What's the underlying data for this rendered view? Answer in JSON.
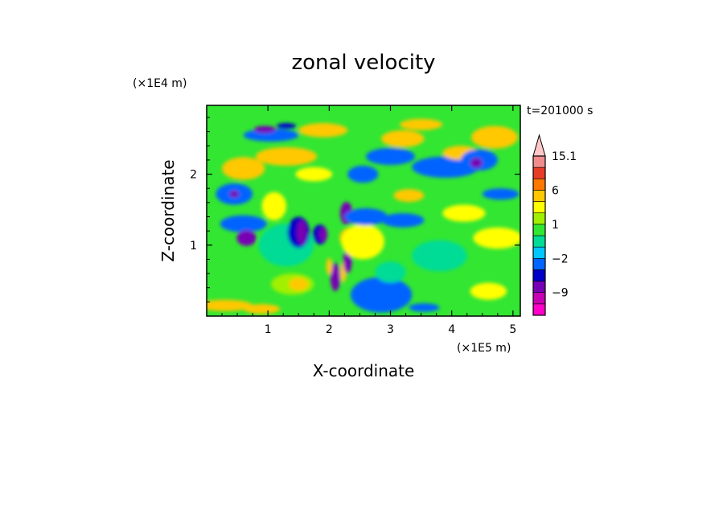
{
  "chart_data": {
    "type": "heatmap",
    "title": "zonal velocity",
    "xlabel": "X-coordinate",
    "ylabel": "Z-coordinate",
    "x_scale_label": "(×1E5 m)",
    "y_scale_label": "(×1E4 m)",
    "time_label": "t=201000 s",
    "xlim": [
      0,
      5.12
    ],
    "ylim": [
      0,
      2.97
    ],
    "x_ticks": [
      1,
      2,
      3,
      4,
      5
    ],
    "y_ticks": [
      1,
      2
    ],
    "x_tick_labels": [
      "1",
      "2",
      "3",
      "4",
      "5"
    ],
    "y_tick_labels": [
      "1",
      "2"
    ],
    "colorbar": {
      "levels": [
        -15,
        -12,
        -9,
        -6,
        -3,
        -2,
        -1,
        0,
        1,
        2,
        3,
        6,
        9,
        12,
        15.1
      ],
      "colors": [
        "#ff00c8",
        "#c800b4",
        "#7800b4",
        "#0000c8",
        "#0064ff",
        "#00c8ff",
        "#00dc96",
        "#32e632",
        "#a0f000",
        "#ffff00",
        "#ffc800",
        "#ff7800",
        "#e63c28",
        "#f08c8c",
        "#ffc8c8"
      ],
      "tick_labels": [
        "15.1",
        "6",
        "1",
        "−2",
        "−9"
      ],
      "tick_values": [
        15.1,
        6,
        1,
        -2,
        -9
      ]
    },
    "features": [
      {
        "x": 0.6,
        "z": 2.08,
        "rx": 0.35,
        "rz": 0.16,
        "v": 4
      },
      {
        "x": 1.3,
        "z": 2.25,
        "rx": 0.5,
        "rz": 0.13,
        "v": 4
      },
      {
        "x": 1.05,
        "z": 2.55,
        "rx": 0.45,
        "rz": 0.09,
        "v": -2
      },
      {
        "x": 0.95,
        "z": 2.63,
        "rx": 0.18,
        "rz": 0.05,
        "v": -6
      },
      {
        "x": 1.3,
        "z": 2.68,
        "rx": 0.16,
        "rz": 0.04,
        "v": -3
      },
      {
        "x": 1.9,
        "z": 2.62,
        "rx": 0.4,
        "rz": 0.1,
        "v": 4
      },
      {
        "x": 0.45,
        "z": 1.72,
        "rx": 0.3,
        "rz": 0.15,
        "v": -2
      },
      {
        "x": 0.45,
        "z": 1.72,
        "rx": 0.08,
        "rz": 0.05,
        "v": -6
      },
      {
        "x": 0.6,
        "z": 1.3,
        "rx": 0.38,
        "rz": 0.12,
        "v": -2
      },
      {
        "x": 0.65,
        "z": 1.1,
        "rx": 0.16,
        "rz": 0.11,
        "v": -6
      },
      {
        "x": 1.1,
        "z": 1.55,
        "rx": 0.2,
        "rz": 0.2,
        "v": 3
      },
      {
        "x": 1.3,
        "z": 1.0,
        "rx": 0.45,
        "rz": 0.3,
        "v": 0
      },
      {
        "x": 1.5,
        "z": 1.18,
        "rx": 0.18,
        "rz": 0.22,
        "v": -3
      },
      {
        "x": 1.55,
        "z": 1.18,
        "rx": 0.08,
        "rz": 0.17,
        "v": -6
      },
      {
        "x": 1.85,
        "z": 1.15,
        "rx": 0.12,
        "rz": 0.14,
        "v": -3
      },
      {
        "x": 1.9,
        "z": 1.15,
        "rx": 0.07,
        "rz": 0.1,
        "v": -6
      },
      {
        "x": 1.4,
        "z": 0.45,
        "rx": 0.35,
        "rz": 0.15,
        "v": 2
      },
      {
        "x": 1.5,
        "z": 0.45,
        "rx": 0.16,
        "rz": 0.09,
        "v": 6
      },
      {
        "x": 2.1,
        "z": 0.55,
        "rx": 0.08,
        "rz": 0.2,
        "v": -6
      },
      {
        "x": 2.23,
        "z": 0.62,
        "rx": 0.05,
        "rz": 0.15,
        "v": 6
      },
      {
        "x": 2.3,
        "z": 0.78,
        "rx": 0.07,
        "rz": 0.18,
        "v": -6
      },
      {
        "x": 2.0,
        "z": 0.7,
        "rx": 0.05,
        "rz": 0.12,
        "v": 6
      },
      {
        "x": 2.35,
        "z": 1.1,
        "rx": 0.18,
        "rz": 0.15,
        "v": 6
      },
      {
        "x": 2.55,
        "z": 1.05,
        "rx": 0.35,
        "rz": 0.25,
        "v": 3
      },
      {
        "x": 2.28,
        "z": 1.45,
        "rx": 0.1,
        "rz": 0.16,
        "v": -6
      },
      {
        "x": 2.6,
        "z": 1.4,
        "rx": 0.35,
        "rz": 0.12,
        "v": -2
      },
      {
        "x": 2.85,
        "z": 0.3,
        "rx": 0.5,
        "rz": 0.25,
        "v": -2
      },
      {
        "x": 3.0,
        "z": 0.62,
        "rx": 0.25,
        "rz": 0.15,
        "v": 0
      },
      {
        "x": 3.2,
        "z": 1.35,
        "rx": 0.35,
        "rz": 0.1,
        "v": -2
      },
      {
        "x": 3.3,
        "z": 1.7,
        "rx": 0.25,
        "rz": 0.09,
        "v": 4
      },
      {
        "x": 3.0,
        "z": 2.25,
        "rx": 0.4,
        "rz": 0.12,
        "v": -2
      },
      {
        "x": 3.2,
        "z": 2.5,
        "rx": 0.35,
        "rz": 0.12,
        "v": 4
      },
      {
        "x": 3.5,
        "z": 2.7,
        "rx": 0.35,
        "rz": 0.08,
        "v": 4
      },
      {
        "x": 3.9,
        "z": 2.1,
        "rx": 0.55,
        "rz": 0.15,
        "v": -2
      },
      {
        "x": 4.15,
        "z": 2.3,
        "rx": 0.3,
        "rz": 0.1,
        "v": 4
      },
      {
        "x": 4.45,
        "z": 2.2,
        "rx": 0.3,
        "rz": 0.15,
        "v": -2
      },
      {
        "x": 4.4,
        "z": 2.16,
        "rx": 0.1,
        "rz": 0.07,
        "v": -6
      },
      {
        "x": 4.7,
        "z": 2.52,
        "rx": 0.38,
        "rz": 0.16,
        "v": 4
      },
      {
        "x": 4.6,
        "z": 2.52,
        "rx": 0.15,
        "rz": 0.08,
        "v": 6
      },
      {
        "x": 4.8,
        "z": 1.72,
        "rx": 0.3,
        "rz": 0.08,
        "v": -2
      },
      {
        "x": 4.2,
        "z": 1.45,
        "rx": 0.35,
        "rz": 0.12,
        "v": 3
      },
      {
        "x": 4.75,
        "z": 1.1,
        "rx": 0.4,
        "rz": 0.15,
        "v": 3
      },
      {
        "x": 3.8,
        "z": 0.85,
        "rx": 0.45,
        "rz": 0.22,
        "v": 0
      },
      {
        "x": 4.6,
        "z": 0.35,
        "rx": 0.3,
        "rz": 0.12,
        "v": 3
      },
      {
        "x": 0.3,
        "z": 0.15,
        "rx": 0.45,
        "rz": 0.08,
        "v": 4
      },
      {
        "x": 0.9,
        "z": 0.1,
        "rx": 0.3,
        "rz": 0.07,
        "v": 4
      },
      {
        "x": 3.55,
        "z": 0.12,
        "rx": 0.25,
        "rz": 0.06,
        "v": -2
      },
      {
        "x": 2.55,
        "z": 2.0,
        "rx": 0.25,
        "rz": 0.12,
        "v": -2
      },
      {
        "x": 1.75,
        "z": 2.0,
        "rx": 0.3,
        "rz": 0.1,
        "v": 3
      }
    ]
  }
}
